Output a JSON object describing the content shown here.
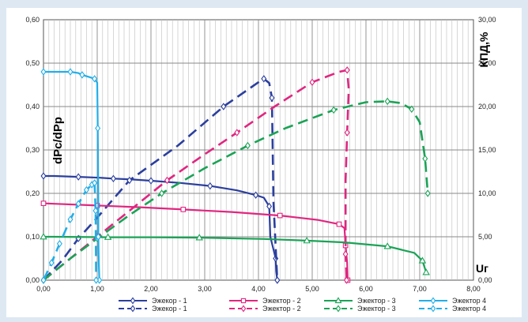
{
  "chart_data": {
    "type": "line",
    "x_ticks": [
      "0,00",
      "1,00",
      "2,00",
      "3,00",
      "4,00",
      "5,00",
      "6,00",
      "7,00",
      "8,00"
    ],
    "y_left_ticks": [
      "0,00",
      "0,10",
      "0,20",
      "0,30",
      "0,40",
      "0,50",
      "0,60"
    ],
    "y_right_ticks": [
      "0,00",
      "5,00",
      "10,00",
      "15,00",
      "20,00",
      "25,00",
      "30,00"
    ],
    "xlim": [
      0,
      8
    ],
    "ylim_left": [
      0,
      0.6
    ],
    "ylim_right": [
      0,
      30
    ],
    "ylabel_left": "dPc/dPp",
    "ylabel_right": "КПД,%",
    "xlabel": "Uг",
    "grid": true,
    "legend_position": "bottom",
    "series": [
      {
        "name": "Эжекор - 1",
        "axis": "left",
        "style": "solid",
        "marker": "diamond",
        "color": "#2b3f9e",
        "x": [
          0,
          0.2,
          0.65,
          1.05,
          1.3,
          1.65,
          2.0,
          2.55,
          3.1,
          3.6,
          3.95,
          4.1,
          4.2,
          4.22,
          4.32,
          4.33,
          4.35
        ],
        "y": [
          0.24,
          0.24,
          0.238,
          0.236,
          0.234,
          0.232,
          0.229,
          0.224,
          0.217,
          0.207,
          0.196,
          0.19,
          0.17,
          0.1,
          0.05,
          0.02,
          0.0
        ]
      },
      {
        "name": "Эжекор - 1",
        "axis": "right",
        "style": "dashed",
        "marker": "diamond",
        "color": "#2b3f9e",
        "x": [
          0,
          0.35,
          0.65,
          1.0,
          1.6,
          2.5,
          3.35,
          4.0,
          4.1,
          4.2,
          4.25,
          4.28,
          4.35
        ],
        "y": [
          0,
          2.3,
          4.8,
          7.2,
          11.5,
          15.5,
          20.0,
          22.8,
          23.2,
          22.7,
          21.0,
          9.0,
          0
        ]
      },
      {
        "name": "Эжектор - 2",
        "axis": "left",
        "style": "solid",
        "marker": "square",
        "color": "#e02680",
        "x": [
          0,
          0.2,
          1.0,
          1.8,
          2.6,
          3.5,
          4.4,
          5.1,
          5.5,
          5.6,
          5.62,
          5.65,
          5.66
        ],
        "y": [
          0.177,
          0.176,
          0.172,
          0.168,
          0.163,
          0.157,
          0.149,
          0.139,
          0.129,
          0.12,
          0.08,
          0.04,
          0.0
        ]
      },
      {
        "name": "Эжектор - 2",
        "axis": "right",
        "style": "dashed",
        "marker": "diamond",
        "color": "#e02680",
        "x": [
          0,
          0.5,
          1.0,
          1.6,
          2.3,
          3.0,
          3.6,
          4.3,
          5.0,
          5.5,
          5.65,
          5.68,
          5.65,
          5.62,
          5.62,
          5.64
        ],
        "y": [
          0,
          2.5,
          5.0,
          8.0,
          11.5,
          14.5,
          17.0,
          20.0,
          22.8,
          24.0,
          24.2,
          22.0,
          17.0,
          11.5,
          3.0,
          0
        ]
      },
      {
        "name": "Эжектор - 3",
        "axis": "left",
        "style": "solid",
        "marker": "triangle",
        "color": "#1aa356",
        "x": [
          0,
          0.2,
          1.2,
          2.0,
          2.9,
          4.1,
          4.9,
          5.6,
          6.4,
          6.9,
          7.05,
          7.12
        ],
        "y": [
          0.1,
          0.1,
          0.099,
          0.099,
          0.098,
          0.095,
          0.091,
          0.087,
          0.078,
          0.063,
          0.045,
          0.018
        ]
      },
      {
        "name": "Эжектор - 3",
        "axis": "right",
        "style": "dashed",
        "marker": "diamond",
        "color": "#1aa356",
        "x": [
          0,
          0.5,
          1.0,
          1.6,
          2.2,
          3.0,
          3.8,
          4.5,
          5.4,
          6.0,
          6.4,
          6.65,
          6.85,
          7.0,
          7.1,
          7.15
        ],
        "y": [
          0,
          2.5,
          4.8,
          7.5,
          10.0,
          12.9,
          15.5,
          17.5,
          19.6,
          20.5,
          20.6,
          20.4,
          19.7,
          18.2,
          14.0,
          10.0
        ]
      },
      {
        "name": "Эжектор 4",
        "axis": "left",
        "style": "solid",
        "marker": "diamond",
        "color": "#22aee8",
        "x": [
          0,
          0.2,
          0.5,
          0.65,
          0.72,
          0.85,
          0.95,
          1.0,
          1.01,
          1.02,
          1.02,
          1.03,
          1.04
        ],
        "y": [
          0.48,
          0.48,
          0.48,
          0.477,
          0.473,
          0.468,
          0.464,
          0.455,
          0.35,
          0.18,
          0.1,
          0.04,
          0.0
        ]
      },
      {
        "name": "Эжектор 4",
        "axis": "right",
        "style": "dashed",
        "marker": "diamond",
        "color": "#22aee8",
        "x": [
          0,
          0.15,
          0.3,
          0.5,
          0.65,
          0.8,
          0.9,
          0.95,
          0.97,
          0.98
        ],
        "y": [
          0,
          2.0,
          4.2,
          7.0,
          8.8,
          10.4,
          11.0,
          11.2,
          8.0,
          0
        ]
      }
    ]
  }
}
